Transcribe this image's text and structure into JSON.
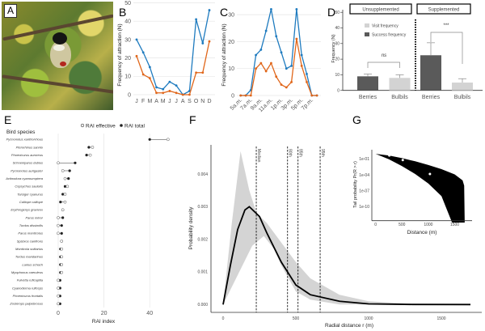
{
  "panels": {
    "a": "A",
    "b": "B",
    "c": "C",
    "d": "D",
    "e": "E",
    "f": "F",
    "g": "G"
  },
  "colors": {
    "visits": "#1f7bbf",
    "success": "#e0661a",
    "visit_bar": "#d3d3d3",
    "success_bar": "#5a5a5a"
  },
  "chart_data": [
    {
      "id": "B",
      "type": "line",
      "ylabel": "Frequency of attraction (N)",
      "categories": [
        "J",
        "F",
        "M",
        "A",
        "M",
        "J",
        "J",
        "A",
        "S",
        "O",
        "N",
        "D"
      ],
      "ylim": [
        0,
        50
      ],
      "yticks": [
        0,
        10,
        20,
        30,
        40,
        50
      ],
      "grid": true,
      "series": [
        {
          "color": "#1f7bbf",
          "values": [
            30,
            23,
            15,
            4,
            3,
            7,
            5,
            0,
            2,
            41,
            28,
            46
          ]
        },
        {
          "color": "#e0661a",
          "values": [
            21,
            11,
            9,
            1,
            1,
            2,
            1,
            0,
            0,
            12,
            12,
            29
          ]
        }
      ]
    },
    {
      "id": "C",
      "type": "line",
      "ylabel": "Frequency of attraction (N)",
      "tick_labels": [
        "5a.m.",
        "7a.m.",
        "9a.m.",
        "11a.m.",
        "1p.m.",
        "3p.m.",
        "5p.m.",
        "7p.m."
      ],
      "ylim": [
        0,
        30
      ],
      "yticks": [
        0,
        10,
        20,
        30
      ],
      "grid": true,
      "series": [
        {
          "color": "#1f7bbf",
          "values": [
            0,
            0,
            2,
            15,
            17,
            24,
            32,
            22,
            16,
            10,
            11,
            32,
            15,
            8,
            0,
            0
          ]
        },
        {
          "color": "#e0661a",
          "values": [
            0,
            0,
            0,
            10,
            12,
            9,
            12,
            7,
            4,
            3,
            5,
            21,
            11,
            5,
            0,
            0
          ]
        }
      ]
    },
    {
      "id": "D",
      "type": "bar",
      "ylabel": "Frequency (N)",
      "ylim": [
        0,
        50
      ],
      "yticks": [
        0,
        10,
        20,
        30,
        40,
        50
      ],
      "groups": [
        "Unsupplemented",
        "Supplemented"
      ],
      "legend": [
        {
          "label": "Visit frequency",
          "color": "#d3d3d3"
        },
        {
          "label": "Success frequency",
          "color": "#5a5a5a"
        }
      ],
      "bars": [
        {
          "group": "Unsupplemented",
          "category": "Berries",
          "value": 9,
          "error_top": 10.5,
          "color": "#5a5a5a"
        },
        {
          "group": "Unsupplemented",
          "category": "Bulbils",
          "value": 8,
          "error_top": 10,
          "color": "#d3d3d3"
        },
        {
          "group": "Supplemented",
          "category": "Berries",
          "value": 22.5,
          "error_top": 30.5,
          "color": "#5a5a5a"
        },
        {
          "group": "Supplemented",
          "category": "Bulbils",
          "value": 5,
          "error_top": 7.5,
          "color": "#d3d3d3"
        }
      ],
      "significance": [
        {
          "label": "ns",
          "group": "Unsupplemented"
        },
        {
          "label": "***",
          "group": "Supplemented"
        }
      ]
    },
    {
      "id": "E",
      "type": "scatter",
      "ylabel": "Bird species",
      "xlabel": "RAI index",
      "xlim": [
        0,
        50
      ],
      "xticks": [
        0,
        20,
        40
      ],
      "legend": [
        {
          "label": "RAI effective",
          "marker": "open-circle"
        },
        {
          "label": "RAI total",
          "marker": "filled-circle"
        }
      ],
      "species": [
        {
          "name": "Pycnonotus xanthorrhous",
          "effective": 48,
          "total": 40
        },
        {
          "name": "Pterorhinus sannio",
          "effective": 15,
          "total": 13.4
        },
        {
          "name": "Phoenicurus auroreus",
          "effective": 14,
          "total": 12.4
        },
        {
          "name": "Schoeniparus dubius",
          "effective": 0,
          "total": 7.4
        },
        {
          "name": "Pycnonotus aurigaster",
          "effective": 2,
          "total": 5
        },
        {
          "name": "Actinodura cyanouroptera",
          "effective": 3,
          "total": 4.5
        },
        {
          "name": "Copsychus saularis",
          "effective": 4,
          "total": 3
        },
        {
          "name": "Tarsiger cyanurus",
          "effective": 3,
          "total": 2
        },
        {
          "name": "Calliope calliope",
          "effective": 3,
          "total": 1
        },
        {
          "name": "Erythrogenys gravivox",
          "effective": 2,
          "total": 2
        },
        {
          "name": "Parus minor",
          "effective": 0,
          "total": 2
        },
        {
          "name": "Turdus dissimilis",
          "effective": 0,
          "total": 1.5
        },
        {
          "name": "Parus monticolus",
          "effective": 0,
          "total": 1.5
        },
        {
          "name": "Spizixos canifrons",
          "effective": 1.5,
          "total": 1.5
        },
        {
          "name": "Monticola solitarius",
          "effective": 1.5,
          "total": 1
        },
        {
          "name": "Turdus mandarinus",
          "effective": 1.5,
          "total": 1
        },
        {
          "name": "Lanius schach",
          "effective": 1.5,
          "total": 1
        },
        {
          "name": "Myophonus caeruleus",
          "effective": 1.5,
          "total": 1
        },
        {
          "name": "Fulvetta ruficapilla",
          "effective": 0,
          "total": 0.8
        },
        {
          "name": "Cyanoderma ruficeps",
          "effective": 0,
          "total": 0.8
        },
        {
          "name": "Phoenicurus frontalis",
          "effective": 0,
          "total": 0.8
        },
        {
          "name": "Zosterops palpebrosus",
          "effective": 0,
          "total": 0.8
        }
      ]
    },
    {
      "id": "F",
      "type": "line",
      "xlabel": "Radial distance  r  (m)",
      "ylabel": "Probability density",
      "xlim": [
        0,
        1700
      ],
      "xticks": [
        0,
        500,
        1000,
        1500
      ],
      "ylim": [
        0,
        0.0048
      ],
      "yticks": [
        "0.000",
        "0.001",
        "0.002",
        "0.003",
        "0.004"
      ],
      "curve": [
        [
          0,
          0
        ],
        [
          50,
          0.0012
        ],
        [
          100,
          0.0023
        ],
        [
          150,
          0.0029
        ],
        [
          180,
          0.003
        ],
        [
          250,
          0.0027
        ],
        [
          300,
          0.0022
        ],
        [
          400,
          0.0013
        ],
        [
          500,
          0.0006
        ],
        [
          600,
          0.0003
        ],
        [
          800,
          0.0001
        ],
        [
          1000,
          2e-05
        ],
        [
          1300,
          3e-06
        ],
        [
          1700,
          0
        ]
      ],
      "band_upper": [
        [
          0,
          0
        ],
        [
          60,
          0.0025
        ],
        [
          120,
          0.0047
        ],
        [
          180,
          0.0035
        ],
        [
          230,
          0.0028
        ],
        [
          300,
          0.0025
        ],
        [
          400,
          0.0019
        ],
        [
          500,
          0.0013
        ],
        [
          600,
          0.0008
        ],
        [
          800,
          0.0003
        ],
        [
          1000,
          0.0001
        ],
        [
          1300,
          2e-05
        ],
        [
          1700,
          0
        ]
      ],
      "band_lower": [
        [
          0,
          0
        ],
        [
          100,
          0.0009
        ],
        [
          200,
          0.0018
        ],
        [
          280,
          0.0021
        ],
        [
          350,
          0.0017
        ],
        [
          400,
          0.0012
        ],
        [
          500,
          0.0004
        ],
        [
          600,
          0.00015
        ],
        [
          800,
          0
        ],
        [
          1700,
          0
        ]
      ],
      "quantiles": [
        {
          "label": "Median",
          "r": 228
        },
        {
          "label": "80th",
          "r": 443
        },
        {
          "label": "85th",
          "r": 515
        },
        {
          "label": "95th",
          "r": 667
        }
      ]
    },
    {
      "id": "G",
      "type": "area",
      "xlabel": "Distance (m)",
      "ylabel": "Tail probability  Pr(R > r)",
      "yscale": "log",
      "xlim": [
        0,
        1700
      ],
      "xticks": [
        0,
        500,
        1000,
        1500
      ],
      "yticks": [
        "1e-01",
        "1e-04",
        "1e-07",
        "1e-10"
      ],
      "band_upper": [
        [
          0,
          1
        ],
        [
          250,
          0.5
        ],
        [
          500,
          0.16
        ],
        [
          750,
          0.04
        ],
        [
          1000,
          0.008
        ],
        [
          1250,
          0.0013
        ],
        [
          1500,
          0.00013
        ],
        [
          1650,
          1e-05
        ],
        [
          1680,
          1e-06
        ],
        [
          1690,
          1e-13
        ]
      ],
      "band_lower": [
        [
          0,
          1
        ],
        [
          250,
          0.1
        ],
        [
          500,
          0.005
        ],
        [
          750,
          0.00016
        ],
        [
          1000,
          2.5e-06
        ],
        [
          1250,
          1e-08
        ],
        [
          1450,
          1e-13
        ]
      ],
      "points": [
        [
          260,
          0.5
        ],
        [
          515,
          0.07
        ],
        [
          1030,
          0.00016
        ]
      ]
    }
  ]
}
